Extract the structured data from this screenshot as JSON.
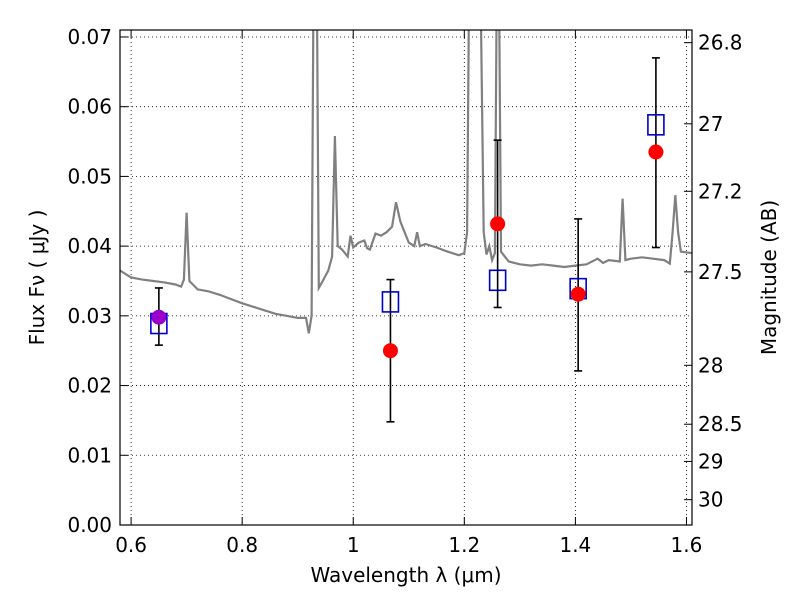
{
  "chart_data": {
    "type": "scatter",
    "xlabel": "Wavelength  λ (μm)",
    "ylabel": "Flux  Fν  ( μJy )",
    "ylabel_right": "Magnitude (AB)",
    "xlim": [
      0.58,
      1.61
    ],
    "ylim": [
      0.0,
      0.071
    ],
    "grid": true,
    "x_ticks": [
      {
        "value": 0.6,
        "label": "0.6"
      },
      {
        "value": 0.8,
        "label": "0.8"
      },
      {
        "value": 1.0,
        "label": "1"
      },
      {
        "value": 1.2,
        "label": "1.2"
      },
      {
        "value": 1.4,
        "label": "1.4"
      },
      {
        "value": 1.6,
        "label": "1.6"
      }
    ],
    "y_ticks": [
      {
        "value": 0.0,
        "label": "0.00"
      },
      {
        "value": 0.01,
        "label": "0.01"
      },
      {
        "value": 0.02,
        "label": "0.02"
      },
      {
        "value": 0.03,
        "label": "0.03"
      },
      {
        "value": 0.04,
        "label": "0.04"
      },
      {
        "value": 0.05,
        "label": "0.05"
      },
      {
        "value": 0.06,
        "label": "0.06"
      },
      {
        "value": 0.07,
        "label": "0.07"
      }
    ],
    "right_ticks": [
      {
        "value": 26.8,
        "label": "26.8"
      },
      {
        "value": 27.0,
        "label": "27"
      },
      {
        "value": 27.2,
        "label": "27.2"
      },
      {
        "value": 27.5,
        "label": "27.5"
      },
      {
        "value": 28.0,
        "label": "28"
      },
      {
        "value": 28.5,
        "label": "28.5"
      },
      {
        "value": 29.0,
        "label": "29"
      },
      {
        "value": 30.0,
        "label": "30"
      }
    ],
    "colors": {
      "model": "#808080",
      "observed": "#ff0000",
      "model_photometry": "#0000cc",
      "highlight": "#9900cc",
      "errorbar": "#000000"
    },
    "observed": [
      {
        "x": 0.65,
        "y": 0.0298,
        "yerr_low": 0.004,
        "yerr_high": 0.0042,
        "color": "#9900cc"
      },
      {
        "x": 1.067,
        "y": 0.025,
        "yerr_low": 0.0102,
        "yerr_high": 0.0102
      },
      {
        "x": 1.26,
        "y": 0.0432,
        "yerr_low": 0.012,
        "yerr_high": 0.012
      },
      {
        "x": 1.405,
        "y": 0.0331,
        "yerr_low": 0.011,
        "yerr_high": 0.0108
      },
      {
        "x": 1.545,
        "y": 0.0535,
        "yerr_low": 0.0137,
        "yerr_high": 0.0135
      }
    ],
    "model_photometry": [
      {
        "x": 0.65,
        "y": 0.0289
      },
      {
        "x": 1.067,
        "y": 0.032
      },
      {
        "x": 1.26,
        "y": 0.0351
      },
      {
        "x": 1.405,
        "y": 0.0339
      },
      {
        "x": 1.545,
        "y": 0.0574
      }
    ],
    "model_spectrum": [
      [
        0.58,
        0.0365
      ],
      [
        0.6,
        0.0355
      ],
      [
        0.62,
        0.0352
      ],
      [
        0.64,
        0.035
      ],
      [
        0.66,
        0.0348
      ],
      [
        0.68,
        0.0345
      ],
      [
        0.69,
        0.0342
      ],
      [
        0.695,
        0.0352
      ],
      [
        0.7,
        0.0448
      ],
      [
        0.705,
        0.035
      ],
      [
        0.72,
        0.0338
      ],
      [
        0.74,
        0.0335
      ],
      [
        0.76,
        0.033
      ],
      [
        0.78,
        0.0324
      ],
      [
        0.8,
        0.0318
      ],
      [
        0.82,
        0.0313
      ],
      [
        0.84,
        0.0308
      ],
      [
        0.86,
        0.0303
      ],
      [
        0.88,
        0.03
      ],
      [
        0.9,
        0.0297
      ],
      [
        0.915,
        0.0297
      ],
      [
        0.92,
        0.0275
      ],
      [
        0.925,
        0.03
      ],
      [
        0.928,
        0.072
      ],
      [
        0.935,
        0.072
      ],
      [
        0.938,
        0.034
      ],
      [
        0.945,
        0.035
      ],
      [
        0.955,
        0.0365
      ],
      [
        0.962,
        0.0385
      ],
      [
        0.967,
        0.0558
      ],
      [
        0.972,
        0.04
      ],
      [
        0.98,
        0.0395
      ],
      [
        0.99,
        0.0385
      ],
      [
        0.995,
        0.0415
      ],
      [
        1.0,
        0.0398
      ],
      [
        1.01,
        0.0405
      ],
      [
        1.02,
        0.0408
      ],
      [
        1.025,
        0.0397
      ],
      [
        1.03,
        0.0395
      ],
      [
        1.04,
        0.0418
      ],
      [
        1.05,
        0.0415
      ],
      [
        1.06,
        0.042
      ],
      [
        1.07,
        0.0428
      ],
      [
        1.077,
        0.0463
      ],
      [
        1.085,
        0.0435
      ],
      [
        1.09,
        0.0425
      ],
      [
        1.1,
        0.0405
      ],
      [
        1.11,
        0.04
      ],
      [
        1.115,
        0.042
      ],
      [
        1.12,
        0.04
      ],
      [
        1.13,
        0.0403
      ],
      [
        1.15,
        0.0398
      ],
      [
        1.17,
        0.0392
      ],
      [
        1.19,
        0.0387
      ],
      [
        1.2,
        0.039
      ],
      [
        1.205,
        0.042
      ],
      [
        1.208,
        0.072
      ],
      [
        1.23,
        0.072
      ],
      [
        1.235,
        0.042
      ],
      [
        1.24,
        0.0388
      ],
      [
        1.245,
        0.04
      ],
      [
        1.25,
        0.038
      ],
      [
        1.255,
        0.039
      ],
      [
        1.258,
        0.072
      ],
      [
        1.263,
        0.072
      ],
      [
        1.266,
        0.0392
      ],
      [
        1.28,
        0.0378
      ],
      [
        1.3,
        0.0374
      ],
      [
        1.32,
        0.0372
      ],
      [
        1.34,
        0.0374
      ],
      [
        1.36,
        0.0372
      ],
      [
        1.38,
        0.037
      ],
      [
        1.4,
        0.0372
      ],
      [
        1.42,
        0.0374
      ],
      [
        1.44,
        0.0382
      ],
      [
        1.45,
        0.0376
      ],
      [
        1.46,
        0.038
      ],
      [
        1.48,
        0.0378
      ],
      [
        1.485,
        0.0468
      ],
      [
        1.49,
        0.038
      ],
      [
        1.5,
        0.0382
      ],
      [
        1.52,
        0.0384
      ],
      [
        1.54,
        0.0382
      ],
      [
        1.56,
        0.038
      ],
      [
        1.57,
        0.0375
      ],
      [
        1.575,
        0.042
      ],
      [
        1.58,
        0.0473
      ],
      [
        1.585,
        0.042
      ],
      [
        1.59,
        0.0392
      ],
      [
        1.61,
        0.039
      ]
    ]
  }
}
